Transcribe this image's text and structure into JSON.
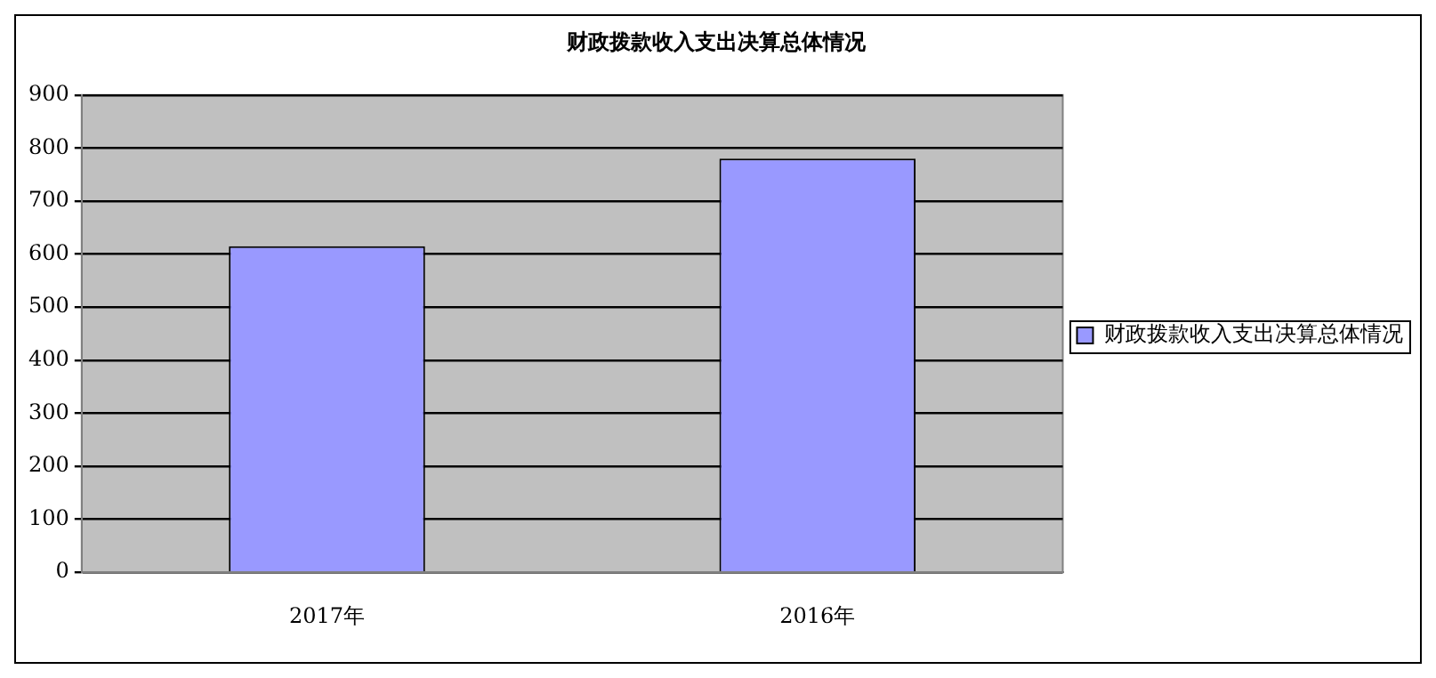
{
  "chart_data": {
    "type": "bar",
    "title": "财政拨款收入支出决算总体情况",
    "categories": [
      "2017年",
      "2016年"
    ],
    "series": [
      {
        "name": "财政拨款收入支出决算总体情况",
        "color": "#9999ff",
        "values": [
          615,
          780
        ]
      }
    ],
    "ylim": [
      0,
      900
    ],
    "yticks": [
      0,
      100,
      200,
      300,
      400,
      500,
      600,
      700,
      800,
      900
    ],
    "grid": "y",
    "legend": "right"
  }
}
